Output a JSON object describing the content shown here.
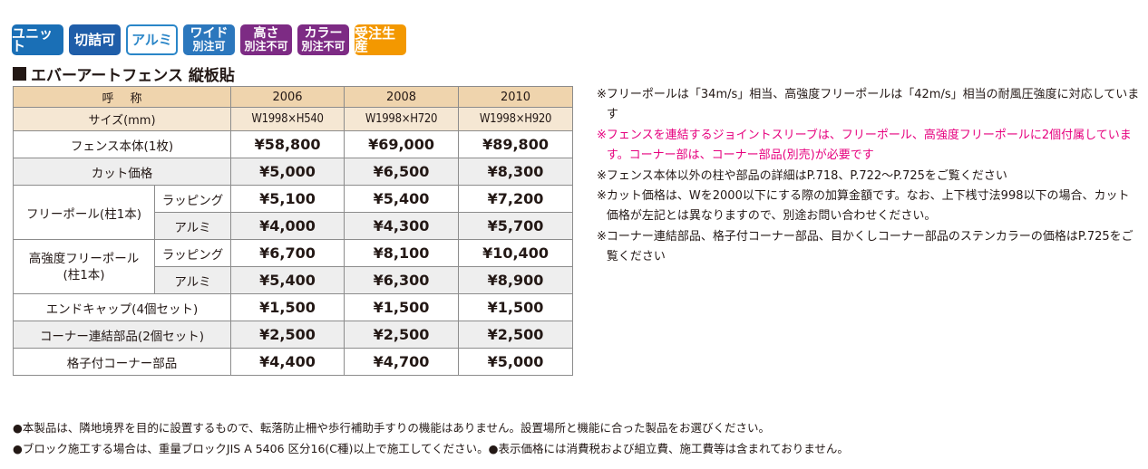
{
  "badges": [
    {
      "line1": "ユニット",
      "line2": "",
      "color": "#1a6fb6",
      "style": "solid"
    },
    {
      "line1": "切詰可",
      "line2": "",
      "color": "#1f5ea9",
      "style": "solid"
    },
    {
      "line1": "アルミ",
      "line2": "",
      "color": "#2a86c8",
      "style": "outline"
    },
    {
      "line1": "ワイド",
      "line2": "別注可",
      "color": "#2b77bd",
      "style": "solid"
    },
    {
      "line1": "高さ",
      "line2": "別注不可",
      "color": "#7d2b84",
      "style": "solid"
    },
    {
      "line1": "カラー",
      "line2": "別注不可",
      "color": "#7d2b84",
      "style": "solid"
    },
    {
      "line1": "受注生産",
      "line2": "",
      "color": "#f39800",
      "style": "solid"
    }
  ],
  "section_title": "エバーアートフェンス 縦板貼",
  "table": {
    "header": {
      "name": "呼称",
      "cols": [
        "2006",
        "2008",
        "2010"
      ]
    },
    "size": {
      "label": "サイズ(mm)",
      "cols": [
        "W1998×H540",
        "W1998×H720",
        "W1998×H920"
      ]
    },
    "rows": {
      "body": {
        "label": "フェンス本体(1枚)",
        "values": [
          "¥58,800",
          "¥69,000",
          "¥89,800"
        ]
      },
      "cut": {
        "label": "カット価格",
        "values": [
          "¥5,000",
          "¥6,500",
          "¥8,300"
        ]
      },
      "free_pole": {
        "label": "フリーポール(柱1本)",
        "wrapping": {
          "label": "ラッピング",
          "values": [
            "¥5,100",
            "¥5,400",
            "¥7,200"
          ]
        },
        "alumi": {
          "label": "アルミ",
          "values": [
            "¥4,000",
            "¥4,300",
            "¥5,700"
          ]
        }
      },
      "strong_pole": {
        "label_line1": "高強度フリーポール",
        "label_line2": "(柱1本)",
        "wrapping": {
          "label": "ラッピング",
          "values": [
            "¥6,700",
            "¥8,100",
            "¥10,400"
          ]
        },
        "alumi": {
          "label": "アルミ",
          "values": [
            "¥5,400",
            "¥6,300",
            "¥8,900"
          ]
        }
      },
      "endcap": {
        "label": "エンドキャップ(4個セット)",
        "values": [
          "¥1,500",
          "¥1,500",
          "¥1,500"
        ]
      },
      "corner_joint": {
        "label": "コーナー連結部品(2個セット)",
        "values": [
          "¥2,500",
          "¥2,500",
          "¥2,500"
        ]
      },
      "lattice_corner": {
        "label": "格子付コーナー部品",
        "values": [
          "¥4,400",
          "¥4,700",
          "¥5,000"
        ]
      }
    }
  },
  "notes": [
    {
      "mark": "※",
      "text": "フリーポールは「34m/s」相当、高強度フリーポールは「42m/s」相当の耐風圧強度に対応しています",
      "color": "#231815"
    },
    {
      "mark": "※",
      "text": "フェンスを連結するジョイントスリーブは、フリーポール、高強度フリーポールに2個付属しています。コーナー部は、コーナー部品(別売)が必要です",
      "color": "#e6007e"
    },
    {
      "mark": "※",
      "text": "フェンス本体以外の柱や部品の詳細はP.718、P.722〜P.725をご覧ください",
      "color": "#231815"
    },
    {
      "mark": "※",
      "text": "カット価格は、Wを2000以下にする際の加算金額です。なお、上下桟寸法998以下の場合、カット価格が左記とは異なりますので、別途お問い合わせください。",
      "color": "#231815"
    },
    {
      "mark": "※",
      "text": "コーナー連結部品、格子付コーナー部品、目かくしコーナー部品のステンカラーの価格はP.725をご覧ください",
      "color": "#231815"
    }
  ],
  "footer": {
    "line1": "●本製品は、隣地境界を目的に設置するもので、転落防止柵や歩行補助手すりの機能はありません。設置場所と機能に合った製品をお選びください。",
    "line2": "●ブロック施工する場合は、重量ブロックJIS A 5406 区分16(C種)以上で施工してください。●表示価格には消費税および組立費、施工費等は含まれておりません。"
  }
}
